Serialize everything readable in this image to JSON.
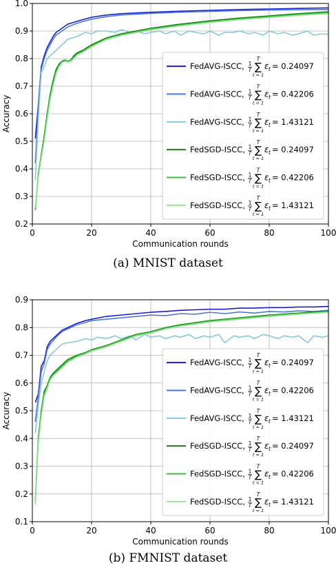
{
  "chart_data": [
    {
      "type": "line",
      "caption": "(a)  MNIST dataset",
      "xlabel": "Communication rounds",
      "ylabel": "Accuracy",
      "xlim": [
        0,
        100
      ],
      "ylim": [
        0.2,
        1.0
      ],
      "xticks": [
        0,
        20,
        40,
        60,
        80,
        100
      ],
      "yticks": [
        0.2,
        0.3,
        0.4,
        0.5,
        0.6,
        0.7,
        0.8,
        0.9,
        1.0
      ],
      "grid": true,
      "legend_position": "center-right",
      "series": [
        {
          "name": "FedAVG-ISCC",
          "epsilon": "0.24097",
          "color": "#1c1cc8",
          "x": [
            1,
            2,
            3,
            4,
            5,
            6,
            7,
            8,
            10,
            12,
            15,
            20,
            25,
            30,
            40,
            50,
            60,
            70,
            80,
            90,
            100
          ],
          "y": [
            0.51,
            0.63,
            0.77,
            0.81,
            0.84,
            0.86,
            0.88,
            0.895,
            0.91,
            0.925,
            0.935,
            0.95,
            0.958,
            0.963,
            0.968,
            0.972,
            0.975,
            0.978,
            0.98,
            0.982,
            0.984
          ]
        },
        {
          "name": "FedAVG-ISCC",
          "epsilon": "0.42206",
          "color": "#4a7ad6",
          "x": [
            1,
            2,
            3,
            4,
            5,
            6,
            7,
            8,
            10,
            12,
            15,
            20,
            25,
            30,
            40,
            50,
            60,
            70,
            80,
            90,
            100
          ],
          "y": [
            0.42,
            0.62,
            0.76,
            0.8,
            0.83,
            0.85,
            0.87,
            0.885,
            0.9,
            0.915,
            0.928,
            0.943,
            0.952,
            0.958,
            0.964,
            0.968,
            0.971,
            0.974,
            0.976,
            0.977,
            0.978
          ]
        },
        {
          "name": "FedAVG-ISCC",
          "epsilon": "1.43121",
          "color": "#85c8e0",
          "x": [
            1,
            2,
            3,
            4,
            5,
            6,
            8,
            10,
            12,
            15,
            18,
            20,
            22,
            25,
            28,
            30,
            33,
            35,
            38,
            40,
            43,
            45,
            48,
            50,
            53,
            55,
            58,
            60,
            63,
            65,
            68,
            70,
            73,
            75,
            78,
            80,
            83,
            85,
            88,
            90,
            93,
            95,
            98,
            100
          ],
          "y": [
            0.36,
            0.58,
            0.75,
            0.77,
            0.8,
            0.81,
            0.83,
            0.85,
            0.87,
            0.88,
            0.895,
            0.89,
            0.9,
            0.9,
            0.895,
            0.905,
            0.895,
            0.9,
            0.89,
            0.895,
            0.9,
            0.89,
            0.9,
            0.885,
            0.9,
            0.895,
            0.89,
            0.9,
            0.885,
            0.895,
            0.895,
            0.9,
            0.89,
            0.895,
            0.885,
            0.9,
            0.89,
            0.895,
            0.885,
            0.89,
            0.9,
            0.885,
            0.89,
            0.888
          ]
        },
        {
          "name": "FedSGD-ISCC",
          "epsilon": "0.24097",
          "color": "#1b7a1b",
          "x": [
            1,
            2,
            3,
            4,
            5,
            6,
            7,
            8,
            9,
            10,
            11,
            12,
            13,
            14,
            15,
            17,
            20,
            25,
            30,
            40,
            50,
            60,
            70,
            80,
            90,
            100
          ],
          "y": [
            0.25,
            0.38,
            0.45,
            0.52,
            0.6,
            0.67,
            0.72,
            0.76,
            0.78,
            0.79,
            0.795,
            0.79,
            0.795,
            0.81,
            0.82,
            0.83,
            0.85,
            0.875,
            0.89,
            0.91,
            0.925,
            0.937,
            0.947,
            0.955,
            0.963,
            0.97
          ]
        },
        {
          "name": "FedSGD-ISCC",
          "epsilon": "0.42206",
          "color": "#3cbf3c",
          "x": [
            1,
            2,
            3,
            4,
            5,
            6,
            7,
            8,
            9,
            10,
            11,
            12,
            13,
            14,
            15,
            17,
            20,
            25,
            30,
            40,
            50,
            60,
            70,
            80,
            90,
            100
          ],
          "y": [
            0.25,
            0.37,
            0.44,
            0.51,
            0.59,
            0.66,
            0.71,
            0.75,
            0.775,
            0.788,
            0.793,
            0.789,
            0.793,
            0.805,
            0.815,
            0.826,
            0.846,
            0.872,
            0.887,
            0.907,
            0.922,
            0.934,
            0.944,
            0.952,
            0.96,
            0.967
          ]
        },
        {
          "name": "FedSGD-ISCC",
          "epsilon": "1.43121",
          "color": "#96e496",
          "x": [
            1,
            2,
            3,
            4,
            5,
            6,
            7,
            8,
            9,
            10,
            11,
            12,
            13,
            14,
            15,
            17,
            20,
            25,
            30,
            40,
            50,
            60,
            70,
            80,
            90,
            100
          ],
          "y": [
            0.26,
            0.37,
            0.44,
            0.5,
            0.58,
            0.65,
            0.7,
            0.745,
            0.77,
            0.785,
            0.79,
            0.787,
            0.79,
            0.8,
            0.812,
            0.823,
            0.843,
            0.869,
            0.884,
            0.904,
            0.919,
            0.931,
            0.941,
            0.949,
            0.957,
            0.963
          ]
        }
      ]
    },
    {
      "type": "line",
      "caption": "(b)  FMNIST dataset",
      "xlabel": "Communication rounds",
      "ylabel": "Accuracy",
      "xlim": [
        0,
        100
      ],
      "ylim": [
        0.1,
        0.9
      ],
      "xticks": [
        0,
        20,
        40,
        60,
        80,
        100
      ],
      "yticks": [
        0.1,
        0.2,
        0.3,
        0.4,
        0.5,
        0.6,
        0.7,
        0.8,
        0.9
      ],
      "grid": true,
      "legend_position": "lower-right",
      "series": [
        {
          "name": "FedAVG-ISCC",
          "epsilon": "0.24097",
          "color": "#1c1cc8",
          "x": [
            1,
            2,
            3,
            4,
            5,
            6,
            8,
            10,
            12,
            15,
            18,
            20,
            25,
            30,
            35,
            40,
            45,
            50,
            55,
            60,
            65,
            70,
            75,
            80,
            85,
            90,
            95,
            100
          ],
          "y": [
            0.53,
            0.56,
            0.66,
            0.68,
            0.73,
            0.75,
            0.77,
            0.79,
            0.8,
            0.815,
            0.825,
            0.83,
            0.84,
            0.845,
            0.85,
            0.855,
            0.858,
            0.862,
            0.864,
            0.866,
            0.866,
            0.87,
            0.87,
            0.872,
            0.872,
            0.874,
            0.874,
            0.876
          ]
        },
        {
          "name": "FedAVG-ISCC",
          "epsilon": "0.42206",
          "color": "#4a7ad6",
          "x": [
            1,
            2,
            3,
            4,
            5,
            6,
            8,
            10,
            12,
            15,
            18,
            20,
            25,
            30,
            35,
            40,
            45,
            50,
            55,
            60,
            65,
            70,
            75,
            80,
            85,
            90,
            95,
            100
          ],
          "y": [
            0.46,
            0.55,
            0.64,
            0.67,
            0.72,
            0.74,
            0.765,
            0.785,
            0.795,
            0.81,
            0.818,
            0.825,
            0.83,
            0.835,
            0.84,
            0.845,
            0.843,
            0.85,
            0.848,
            0.855,
            0.85,
            0.856,
            0.852,
            0.858,
            0.856,
            0.86,
            0.858,
            0.862
          ]
        },
        {
          "name": "FedAVG-ISCC",
          "epsilon": "1.43121",
          "color": "#85c8e0",
          "x": [
            1,
            2,
            3,
            4,
            5,
            6,
            8,
            10,
            12,
            15,
            18,
            20,
            22,
            25,
            28,
            30,
            33,
            35,
            38,
            40,
            43,
            45,
            48,
            50,
            53,
            55,
            58,
            60,
            63,
            65,
            68,
            70,
            73,
            75,
            78,
            80,
            83,
            85,
            88,
            90,
            93,
            95,
            98,
            100
          ],
          "y": [
            0.42,
            0.52,
            0.6,
            0.64,
            0.68,
            0.7,
            0.72,
            0.74,
            0.745,
            0.75,
            0.76,
            0.755,
            0.765,
            0.76,
            0.77,
            0.76,
            0.77,
            0.755,
            0.775,
            0.765,
            0.77,
            0.76,
            0.77,
            0.765,
            0.775,
            0.76,
            0.77,
            0.765,
            0.775,
            0.745,
            0.77,
            0.765,
            0.77,
            0.76,
            0.775,
            0.77,
            0.76,
            0.77,
            0.765,
            0.77,
            0.745,
            0.77,
            0.765,
            0.77
          ]
        },
        {
          "name": "FedSGD-ISCC",
          "epsilon": "0.24097",
          "color": "#1b7a1b",
          "x": [
            1,
            2,
            3,
            4,
            5,
            6,
            7,
            8,
            10,
            12,
            15,
            18,
            20,
            25,
            30,
            35,
            40,
            45,
            50,
            60,
            70,
            80,
            90,
            100
          ],
          "y": [
            0.17,
            0.4,
            0.5,
            0.57,
            0.59,
            0.62,
            0.635,
            0.645,
            0.665,
            0.685,
            0.7,
            0.71,
            0.72,
            0.735,
            0.755,
            0.775,
            0.785,
            0.8,
            0.81,
            0.825,
            0.835,
            0.845,
            0.852,
            0.86
          ]
        },
        {
          "name": "FedSGD-ISCC",
          "epsilon": "0.42206",
          "color": "#3cbf3c",
          "x": [
            1,
            2,
            3,
            4,
            5,
            6,
            7,
            8,
            10,
            12,
            15,
            18,
            20,
            25,
            30,
            35,
            40,
            45,
            50,
            60,
            70,
            80,
            90,
            100
          ],
          "y": [
            0.17,
            0.39,
            0.49,
            0.56,
            0.585,
            0.615,
            0.63,
            0.64,
            0.66,
            0.68,
            0.697,
            0.708,
            0.718,
            0.733,
            0.753,
            0.773,
            0.783,
            0.798,
            0.808,
            0.823,
            0.833,
            0.843,
            0.85,
            0.858
          ]
        },
        {
          "name": "FedSGD-ISCC",
          "epsilon": "1.43121",
          "color": "#96e496",
          "x": [
            1,
            2,
            3,
            4,
            5,
            6,
            7,
            8,
            10,
            12,
            15,
            18,
            20,
            25,
            30,
            35,
            40,
            45,
            50,
            60,
            70,
            80,
            90,
            100
          ],
          "y": [
            0.16,
            0.38,
            0.48,
            0.55,
            0.58,
            0.61,
            0.625,
            0.635,
            0.655,
            0.675,
            0.693,
            0.705,
            0.715,
            0.73,
            0.75,
            0.77,
            0.78,
            0.795,
            0.805,
            0.82,
            0.83,
            0.84,
            0.848,
            0.855
          ]
        }
      ]
    }
  ]
}
